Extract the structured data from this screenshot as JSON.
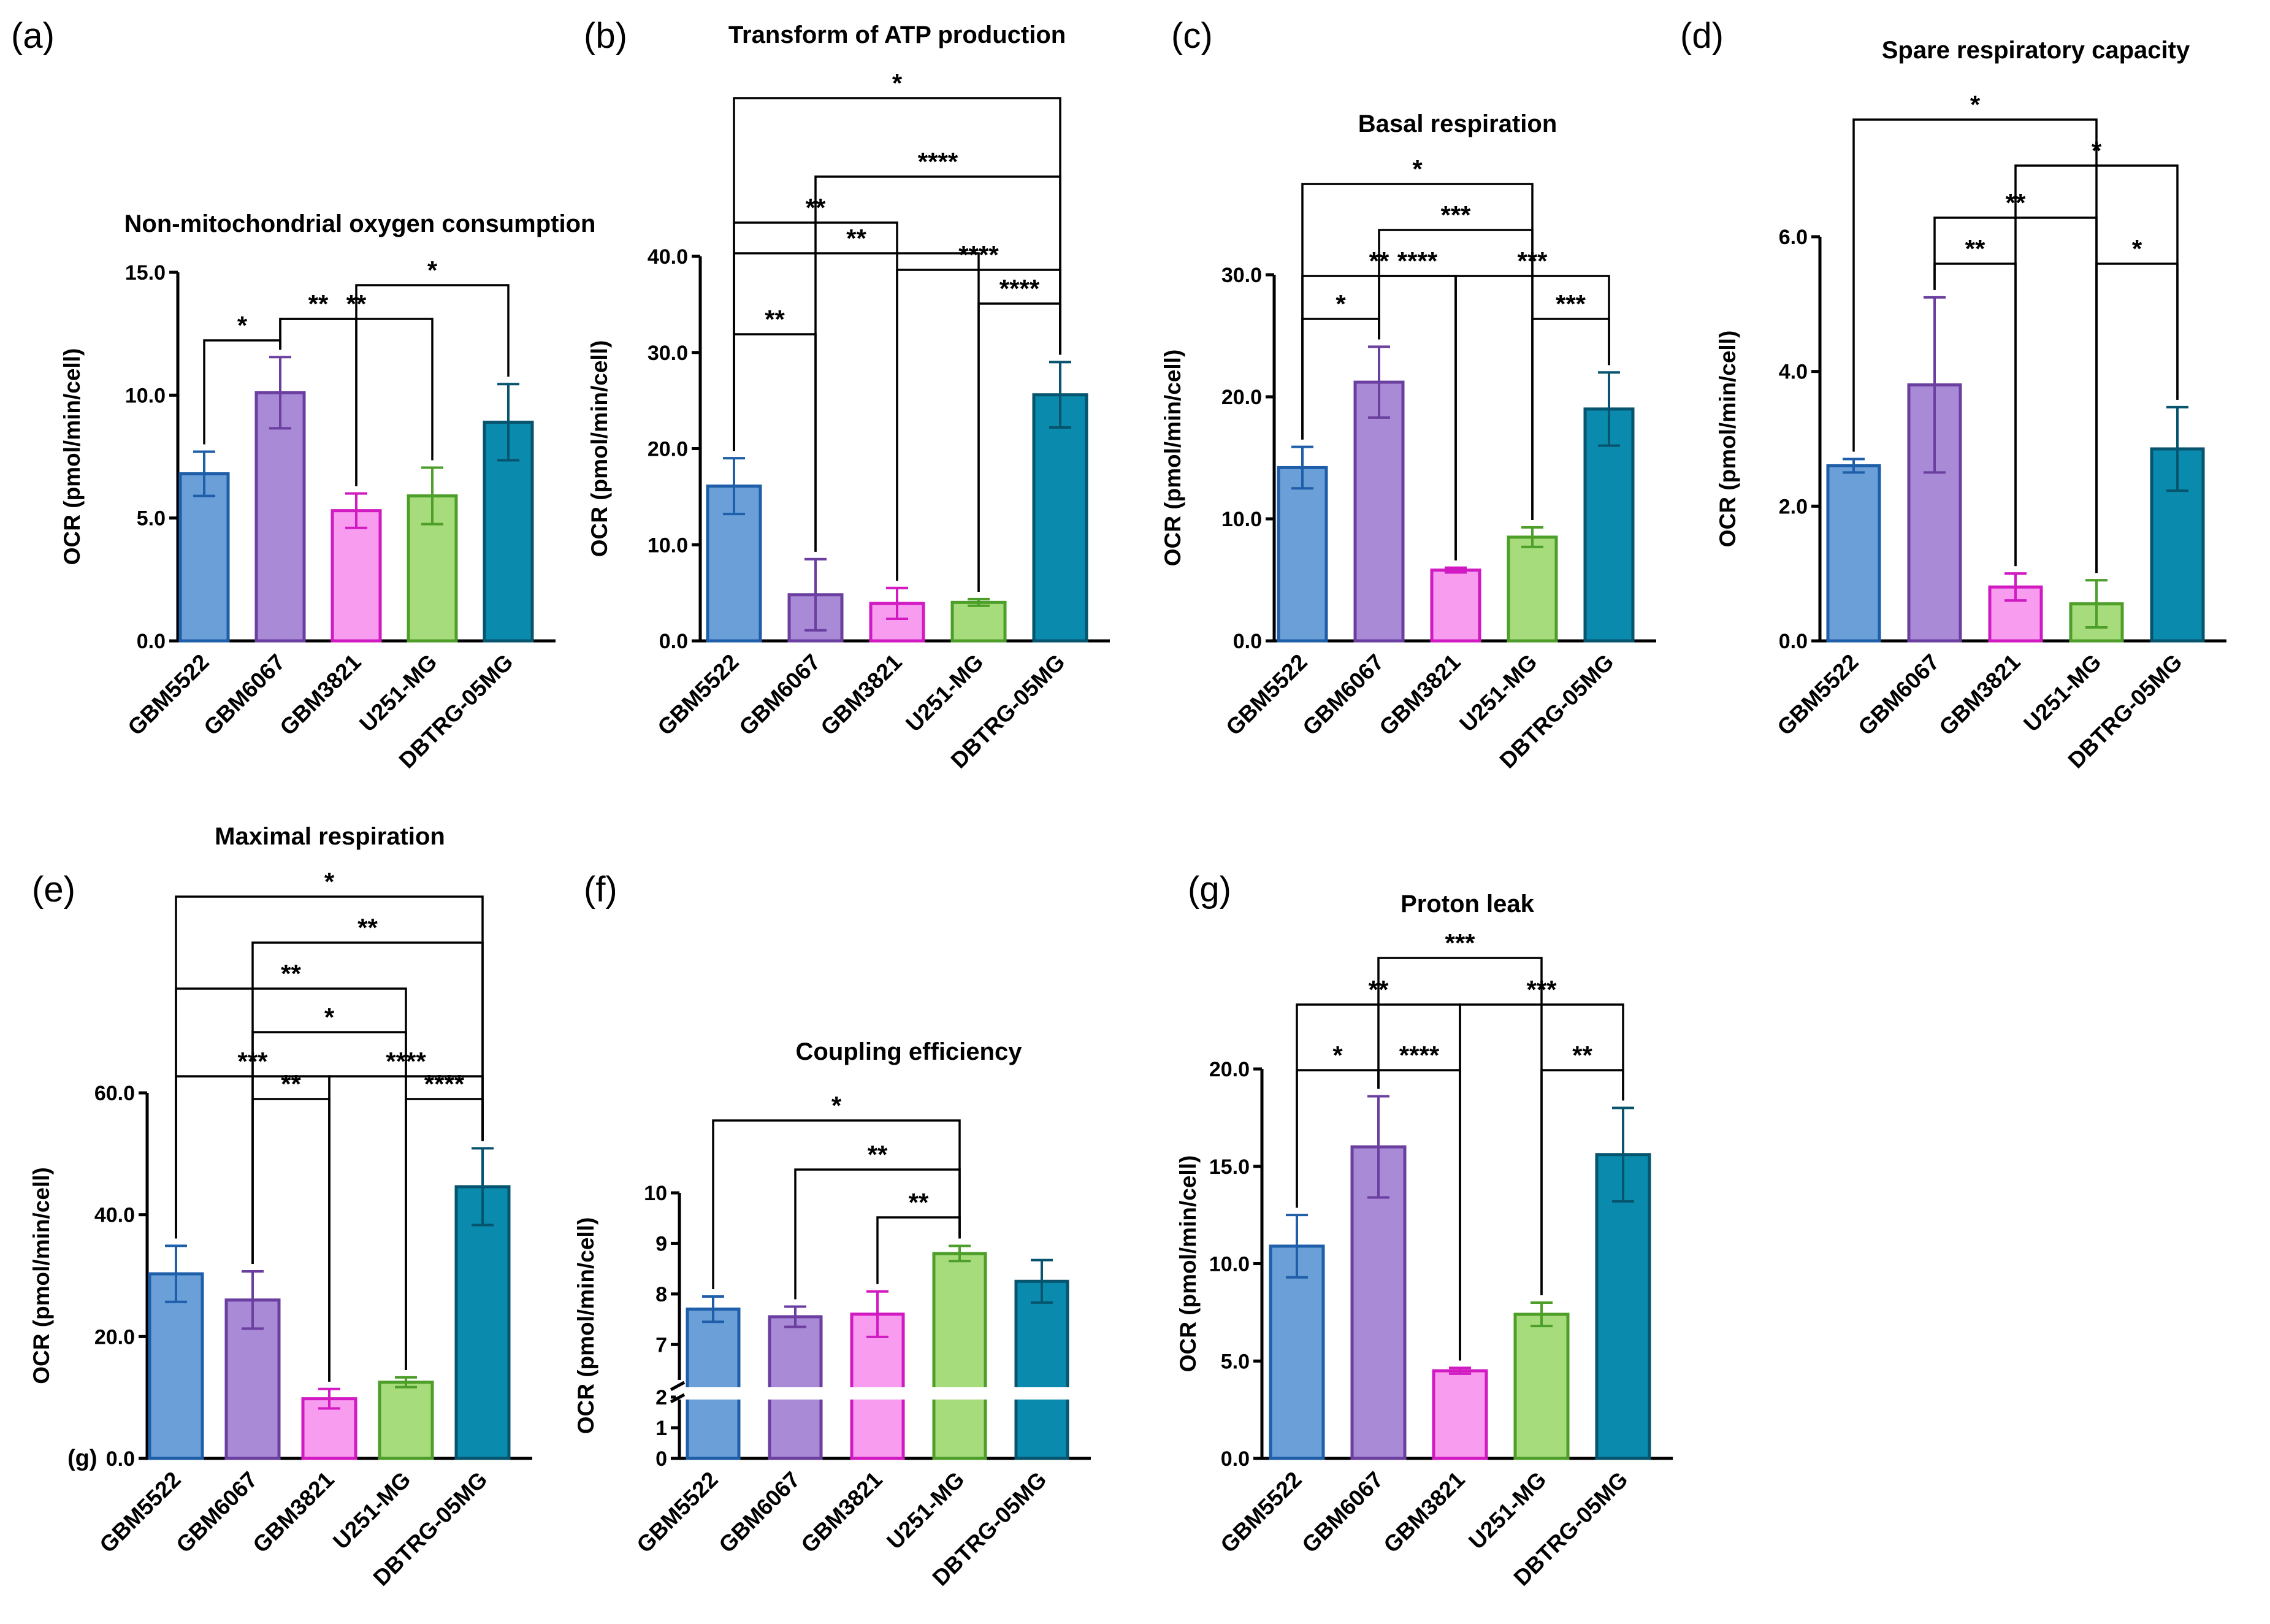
{
  "figure": {
    "y_axis_label": "OCR (pmol/min/cell)",
    "categories": [
      "GBM5522",
      "GBM6067",
      "GBM3821",
      "U251-MG",
      "DBTRG-05MG"
    ],
    "colors": {
      "fills": [
        "#6a9fd8",
        "#a98ad6",
        "#f89cf0",
        "#a6dc7c",
        "#0a8aad"
      ],
      "strokes": [
        "#1f5ea8",
        "#6b3fa0",
        "#d21ac2",
        "#4e9e2a",
        "#06546e"
      ],
      "gap_white": "#ffffff"
    },
    "stray_mark": "(g)"
  },
  "chart_data": [
    {
      "id": "a",
      "label": "(a)",
      "type": "bar",
      "title": "Non-mitochondrial oxygen consumption",
      "ylabel": "OCR (pmol/min/cell)",
      "categories": [
        "GBM5522",
        "GBM6067",
        "GBM3821",
        "U251-MG",
        "DBTRG-05MG"
      ],
      "values": [
        6.8,
        10.1,
        5.3,
        5.9,
        8.9
      ],
      "errors": [
        0.9,
        1.45,
        0.7,
        1.15,
        1.55
      ],
      "ylim": [
        0,
        15
      ],
      "ticks": [
        0,
        5,
        10,
        15
      ],
      "tick_labels": [
        "0.0",
        "5.0",
        "10.0",
        "15.0"
      ],
      "comparisons": [
        {
          "a": 0,
          "b": 1,
          "label": "*"
        },
        {
          "a": 1,
          "b": 2,
          "label": "**"
        },
        {
          "a": 1,
          "b": 3,
          "label": "**"
        },
        {
          "a": 2,
          "b": 4,
          "label": "*"
        }
      ]
    },
    {
      "id": "b",
      "label": "(b)",
      "type": "bar",
      "title": "Transform of ATP production",
      "ylabel": "OCR (pmol/min/cell)",
      "categories": [
        "GBM5522",
        "GBM6067",
        "GBM3821",
        "U251-MG",
        "DBTRG-05MG"
      ],
      "values": [
        16.1,
        4.8,
        3.9,
        4.0,
        25.6
      ],
      "errors": [
        2.9,
        3.7,
        1.6,
        0.35,
        3.4
      ],
      "ylim": [
        0,
        40
      ],
      "ticks": [
        0,
        10,
        20,
        30,
        40
      ],
      "tick_labels": [
        "0.0",
        "10.0",
        "20.0",
        "30.0",
        "40.0"
      ],
      "comparisons": [
        {
          "a": 0,
          "b": 1,
          "label": "**"
        },
        {
          "a": 0,
          "b": 3,
          "label": "**"
        },
        {
          "a": 0,
          "b": 2,
          "label": "**"
        },
        {
          "a": 1,
          "b": 4,
          "label": "****"
        },
        {
          "a": 0,
          "b": 4,
          "label": "*"
        },
        {
          "a": 3,
          "b": 4,
          "label": "****"
        },
        {
          "a": 2,
          "b": 4,
          "label": "****"
        }
      ]
    },
    {
      "id": "c",
      "label": "(c)",
      "type": "bar",
      "title": "Basal respiration",
      "ylabel": "OCR (pmol/min/cell)",
      "categories": [
        "GBM5522",
        "GBM6067",
        "GBM3821",
        "U251-MG",
        "DBTRG-05MG"
      ],
      "values": [
        14.2,
        21.2,
        5.8,
        8.5,
        19.0
      ],
      "errors": [
        1.7,
        2.9,
        0.2,
        0.8,
        3.0
      ],
      "ylim": [
        0,
        30
      ],
      "ticks": [
        0,
        10,
        20,
        30
      ],
      "tick_labels": [
        "0.0",
        "10.0",
        "20.0",
        "30.0"
      ],
      "comparisons": [
        {
          "a": 0,
          "b": 1,
          "label": "*"
        },
        {
          "a": 1,
          "b": 2,
          "label": "****"
        },
        {
          "a": 0,
          "b": 2,
          "label": "**"
        },
        {
          "a": 1,
          "b": 3,
          "label": "***"
        },
        {
          "a": 0,
          "b": 3,
          "label": "*"
        },
        {
          "a": 3,
          "b": 4,
          "label": "***"
        },
        {
          "a": 2,
          "b": 4,
          "label": "***"
        }
      ]
    },
    {
      "id": "d",
      "label": "(d)",
      "type": "bar",
      "title": "Spare respiratory capacity",
      "ylabel": "OCR (pmol/min/cell)",
      "categories": [
        "GBM5522",
        "GBM6067",
        "GBM3821",
        "U251-MG",
        "DBTRG-05MG"
      ],
      "values": [
        2.6,
        3.8,
        0.8,
        0.55,
        2.85
      ],
      "errors": [
        0.1,
        1.3,
        0.2,
        0.35,
        0.62
      ],
      "ylim": [
        0,
        6
      ],
      "ticks": [
        0,
        2,
        4,
        6
      ],
      "tick_labels": [
        "0.0",
        "2.0",
        "4.0",
        "6.0"
      ],
      "comparisons": [
        {
          "a": 1,
          "b": 2,
          "label": "**"
        },
        {
          "a": 3,
          "b": 4,
          "label": "*"
        },
        {
          "a": 1,
          "b": 3,
          "label": "**"
        },
        {
          "a": 2,
          "b": 4,
          "label": "*"
        },
        {
          "a": 0,
          "b": 3,
          "label": "*"
        }
      ]
    },
    {
      "id": "e",
      "label": "(e)",
      "type": "bar",
      "title": "Maximal respiration",
      "ylabel": "OCR (pmol/min/cell)",
      "categories": [
        "GBM5522",
        "GBM6067",
        "GBM3821",
        "U251-MG",
        "DBTRG-05MG"
      ],
      "values": [
        30.3,
        26.0,
        9.8,
        12.5,
        44.6
      ],
      "errors": [
        4.6,
        4.7,
        1.6,
        0.8,
        6.3
      ],
      "ylim": [
        0,
        60
      ],
      "ticks": [
        0,
        20,
        40,
        60
      ],
      "tick_labels": [
        "0.0",
        "20.0",
        "40.0",
        "60.0"
      ],
      "comparisons": [
        {
          "a": 1,
          "b": 2,
          "label": "**"
        },
        {
          "a": 3,
          "b": 4,
          "label": "****"
        },
        {
          "a": 0,
          "b": 2,
          "label": "***"
        },
        {
          "a": 2,
          "b": 4,
          "label": "****"
        },
        {
          "a": 1,
          "b": 3,
          "label": "*"
        },
        {
          "a": 0,
          "b": 3,
          "label": "**"
        },
        {
          "a": 1,
          "b": 4,
          "label": "**"
        },
        {
          "a": 0,
          "b": 4,
          "label": "*"
        }
      ]
    },
    {
      "id": "f",
      "label": "(f)",
      "type": "bar",
      "title": "Coupling efficiency",
      "ylabel": "OCR (pmol/min/cell)",
      "categories": [
        "GBM5522",
        "GBM6067",
        "GBM3821",
        "U251-MG",
        "DBTRG-05MG"
      ],
      "values": [
        7.7,
        7.55,
        7.6,
        8.8,
        8.25
      ],
      "errors": [
        0.25,
        0.2,
        0.45,
        0.15,
        0.42
      ],
      "broken_axis": {
        "lower": [
          0,
          2
        ],
        "upper": [
          6.3,
          10
        ]
      },
      "ticks_lower": [
        0,
        1,
        2
      ],
      "ticks_upper": [
        7,
        8,
        9,
        10
      ],
      "tick_labels_lower": [
        "0",
        "1",
        "2"
      ],
      "tick_labels_upper": [
        "7",
        "8",
        "9",
        "10"
      ],
      "comparisons": [
        {
          "a": 2,
          "b": 3,
          "label": "**"
        },
        {
          "a": 1,
          "b": 3,
          "label": "**"
        },
        {
          "a": 0,
          "b": 3,
          "label": "*"
        }
      ]
    },
    {
      "id": "g",
      "label": "(g)",
      "type": "bar",
      "title": "Proton leak",
      "ylabel": "OCR (pmol/min/cell)",
      "categories": [
        "GBM5522",
        "GBM6067",
        "GBM3821",
        "U251-MG",
        "DBTRG-05MG"
      ],
      "values": [
        10.9,
        16.0,
        4.5,
        7.4,
        15.6
      ],
      "errors": [
        1.6,
        2.6,
        0.15,
        0.6,
        2.4
      ],
      "ylim": [
        0,
        20
      ],
      "ticks": [
        0,
        5,
        10,
        15,
        20
      ],
      "tick_labels": [
        "0.0",
        "5.0",
        "10.0",
        "15.0",
        "20.0"
      ],
      "comparisons": [
        {
          "a": 0,
          "b": 1,
          "label": "*"
        },
        {
          "a": 1,
          "b": 2,
          "label": "****"
        },
        {
          "a": 3,
          "b": 4,
          "label": "**"
        },
        {
          "a": 0,
          "b": 2,
          "label": "**"
        },
        {
          "a": 2,
          "b": 4,
          "label": "***"
        },
        {
          "a": 1,
          "b": 3,
          "label": "***"
        }
      ]
    }
  ]
}
